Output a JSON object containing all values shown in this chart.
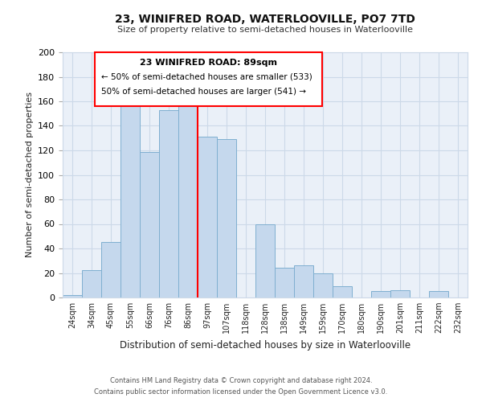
{
  "title": "23, WINIFRED ROAD, WATERLOOVILLE, PO7 7TD",
  "subtitle": "Size of property relative to semi-detached houses in Waterlooville",
  "xlabel": "Distribution of semi-detached houses by size in Waterlooville",
  "ylabel": "Number of semi-detached properties",
  "bin_labels": [
    "24sqm",
    "34sqm",
    "45sqm",
    "55sqm",
    "66sqm",
    "76sqm",
    "86sqm",
    "97sqm",
    "107sqm",
    "118sqm",
    "128sqm",
    "138sqm",
    "149sqm",
    "159sqm",
    "170sqm",
    "180sqm",
    "190sqm",
    "201sqm",
    "211sqm",
    "222sqm",
    "232sqm"
  ],
  "bar_heights": [
    2,
    22,
    45,
    158,
    119,
    153,
    165,
    131,
    129,
    0,
    60,
    24,
    26,
    20,
    9,
    0,
    5,
    6,
    0,
    5,
    0
  ],
  "bar_color": "#c5d8ed",
  "bar_edge_color": "#7fafd0",
  "highlight_bin_index": 6,
  "annotation_text_line1": "23 WINIFRED ROAD: 89sqm",
  "annotation_text_line2": "← 50% of semi-detached houses are smaller (533)",
  "annotation_text_line3": "50% of semi-detached houses are larger (541) →",
  "ylim": [
    0,
    200
  ],
  "yticks": [
    0,
    20,
    40,
    60,
    80,
    100,
    120,
    140,
    160,
    180,
    200
  ],
  "footer_line1": "Contains HM Land Registry data © Crown copyright and database right 2024.",
  "footer_line2": "Contains public sector information licensed under the Open Government Licence v3.0.",
  "background_color": "#ffffff",
  "grid_color": "#ccd9e8",
  "plot_bg_color": "#eaf0f8"
}
